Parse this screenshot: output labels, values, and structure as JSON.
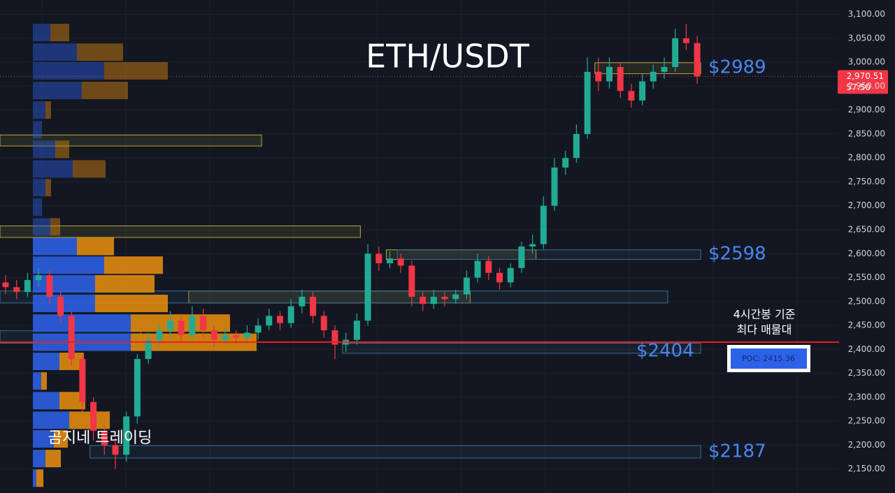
{
  "chart_data": {
    "type": "candlestick",
    "title": "ETH/USDT",
    "up_color": "#22ab94",
    "down_color": "#f23645",
    "ylim": [
      2100,
      3130
    ],
    "yticks": [
      {
        "value": 2150,
        "label": "2,150.00"
      },
      {
        "value": 2200,
        "label": "2,200.00"
      },
      {
        "value": 2250,
        "label": "2,250.00"
      },
      {
        "value": 2300,
        "label": "2,300.00"
      },
      {
        "value": 2350,
        "label": "2,350.00"
      },
      {
        "value": 2400,
        "label": "2,400.00"
      },
      {
        "value": 2450,
        "label": "2,450.00"
      },
      {
        "value": 2500,
        "label": "2,500.00"
      },
      {
        "value": 2550,
        "label": "2,550.00"
      },
      {
        "value": 2600,
        "label": "2,600.00"
      },
      {
        "value": 2650,
        "label": "2,650.00"
      },
      {
        "value": 2700,
        "label": "2,700.00"
      },
      {
        "value": 2750,
        "label": "2,750.00"
      },
      {
        "value": 2800,
        "label": "2,800.00"
      },
      {
        "value": 2850,
        "label": "2,850.00"
      },
      {
        "value": 2900,
        "label": "2,900.00"
      },
      {
        "value": 2950,
        "label": "2,950.00"
      },
      {
        "value": 3000,
        "label": "3,000.00"
      },
      {
        "value": 3050,
        "label": "3,050.00"
      },
      {
        "value": 3100,
        "label": "3,100.00"
      }
    ],
    "grid": true,
    "open": [
      2540,
      2530,
      2520,
      2545,
      2555,
      2510,
      2470,
      2380,
      2290,
      2230,
      2200,
      2180,
      2260,
      2380,
      2420,
      2440,
      2460,
      2430,
      2470,
      2440,
      2420,
      2430,
      2425,
      2435,
      2450,
      2470,
      2455,
      2490,
      2510,
      2470,
      2440,
      2410,
      2420,
      2460,
      2600,
      2580,
      2590,
      2575,
      2510,
      2495,
      2510,
      2505,
      2515,
      2550,
      2585,
      2560,
      2540,
      2570,
      2615,
      2620,
      2700,
      2780,
      2800,
      2850,
      2980,
      2960,
      2990,
      2940,
      2920,
      2960,
      2980,
      2990,
      3050,
      3040
    ],
    "high": [
      2555,
      2545,
      2560,
      2570,
      2565,
      2520,
      2480,
      2390,
      2300,
      2240,
      2215,
      2270,
      2390,
      2435,
      2455,
      2480,
      2475,
      2490,
      2485,
      2450,
      2445,
      2440,
      2450,
      2465,
      2485,
      2480,
      2505,
      2525,
      2520,
      2480,
      2450,
      2435,
      2475,
      2620,
      2615,
      2605,
      2600,
      2585,
      2520,
      2525,
      2520,
      2525,
      2565,
      2600,
      2595,
      2570,
      2580,
      2625,
      2640,
      2720,
      2800,
      2815,
      2870,
      3010,
      3010,
      3010,
      3000,
      2955,
      2975,
      2995,
      3010,
      3070,
      3080,
      3055
    ],
    "low": [
      2515,
      2505,
      2510,
      2530,
      2495,
      2455,
      2365,
      2270,
      2210,
      2180,
      2150,
      2165,
      2245,
      2370,
      2405,
      2425,
      2415,
      2420,
      2425,
      2405,
      2410,
      2410,
      2415,
      2420,
      2440,
      2440,
      2445,
      2475,
      2455,
      2425,
      2380,
      2395,
      2410,
      2450,
      2565,
      2570,
      2560,
      2490,
      2480,
      2485,
      2490,
      2495,
      2505,
      2540,
      2545,
      2525,
      2530,
      2560,
      2600,
      2610,
      2690,
      2765,
      2790,
      2840,
      2940,
      2945,
      2925,
      2905,
      2910,
      2945,
      2965,
      2980,
      3025,
      2955
    ],
    "close": [
      2530,
      2520,
      2545,
      2555,
      2510,
      2470,
      2380,
      2290,
      2230,
      2200,
      2180,
      2260,
      2380,
      2420,
      2440,
      2460,
      2430,
      2470,
      2440,
      2420,
      2430,
      2425,
      2435,
      2450,
      2470,
      2455,
      2490,
      2510,
      2470,
      2440,
      2410,
      2420,
      2460,
      2600,
      2580,
      2590,
      2575,
      2510,
      2495,
      2510,
      2505,
      2515,
      2550,
      2585,
      2560,
      2540,
      2570,
      2615,
      2620,
      2700,
      2780,
      2800,
      2850,
      2980,
      2960,
      2990,
      2940,
      2920,
      2960,
      2980,
      2990,
      3050,
      3040,
      2970
    ],
    "volume_profile": [
      {
        "price": 3062,
        "buy": 25,
        "sell": 27
      },
      {
        "price": 3021,
        "buy": 63,
        "sell": 66
      },
      {
        "price": 2982,
        "buy": 102,
        "sell": 91
      },
      {
        "price": 2941,
        "buy": 70,
        "sell": 66
      },
      {
        "price": 2900,
        "buy": 18,
        "sell": 8
      },
      {
        "price": 2859,
        "buy": 13,
        "sell": 0
      },
      {
        "price": 2818,
        "buy": 32,
        "sell": 20
      },
      {
        "price": 2777,
        "buy": 57,
        "sell": 47
      },
      {
        "price": 2738,
        "buy": 18,
        "sell": 8
      },
      {
        "price": 2697,
        "buy": 13,
        "sell": 0
      },
      {
        "price": 2656,
        "buy": 25,
        "sell": 14
      },
      {
        "price": 2615,
        "buy": 63,
        "sell": 53
      },
      {
        "price": 2576,
        "buy": 102,
        "sell": 84
      },
      {
        "price": 2537,
        "buy": 89,
        "sell": 85
      },
      {
        "price": 2496,
        "buy": 89,
        "sell": 104
      },
      {
        "price": 2455,
        "buy": 140,
        "sell": 142
      },
      {
        "price": 2415,
        "buy": 140,
        "sell": 180
      },
      {
        "price": 2375,
        "buy": 38,
        "sell": 35
      },
      {
        "price": 2334,
        "buy": 12,
        "sell": 8
      },
      {
        "price": 2293,
        "buy": 38,
        "sell": 37
      },
      {
        "price": 2252,
        "buy": 52,
        "sell": 58
      },
      {
        "price": 2213,
        "buy": 30,
        "sell": 20
      },
      {
        "price": 2172,
        "buy": 18,
        "sell": 22
      },
      {
        "price": 2131,
        "buy": 5,
        "sell": 10
      }
    ],
    "zones": [
      {
        "from": 0,
        "to": 23,
        "low": 2825,
        "high": 2848,
        "color": "#b8a83a"
      },
      {
        "from": 0,
        "to": 32,
        "low": 2634,
        "high": 2658,
        "color": "#b8a83a"
      },
      {
        "from": 35,
        "to": 48,
        "low": 2588,
        "high": 2608,
        "color": "#b8a83a"
      },
      {
        "from": 36,
        "to": 63,
        "low": 2588,
        "high": 2608,
        "color": "#3b6d8f"
      },
      {
        "from": 17,
        "to": 42,
        "low": 2497,
        "high": 2522,
        "color": "#b8a83a"
      },
      {
        "from": 0,
        "to": 60,
        "low": 2497,
        "high": 2522,
        "color": "#3b6d8f"
      },
      {
        "from": 31,
        "to": 63,
        "low": 2392,
        "high": 2413,
        "color": "#3b6d8f"
      },
      {
        "from": 0,
        "to": 12,
        "low": 2413,
        "high": 2439,
        "color": "#3b6d8f"
      },
      {
        "from": 54,
        "to": 63,
        "low": 2976,
        "high": 2999,
        "color": "#b8a83a"
      },
      {
        "from": 8,
        "to": 63,
        "low": 2173,
        "high": 2199,
        "color": "#3b6d8f"
      }
    ],
    "poc": 2415.36,
    "poc_label": "POC: 2415.36",
    "poc_note": [
      "4시간봉 기준",
      "최다 매물대"
    ],
    "last_price": {
      "value": 2970.51,
      "label": "2,970.51"
    },
    "countdown": "57:50",
    "annotations": [
      "$2989",
      "$2598",
      "$2404",
      "$2187"
    ],
    "watermark": "곰지네 트레이딩"
  }
}
